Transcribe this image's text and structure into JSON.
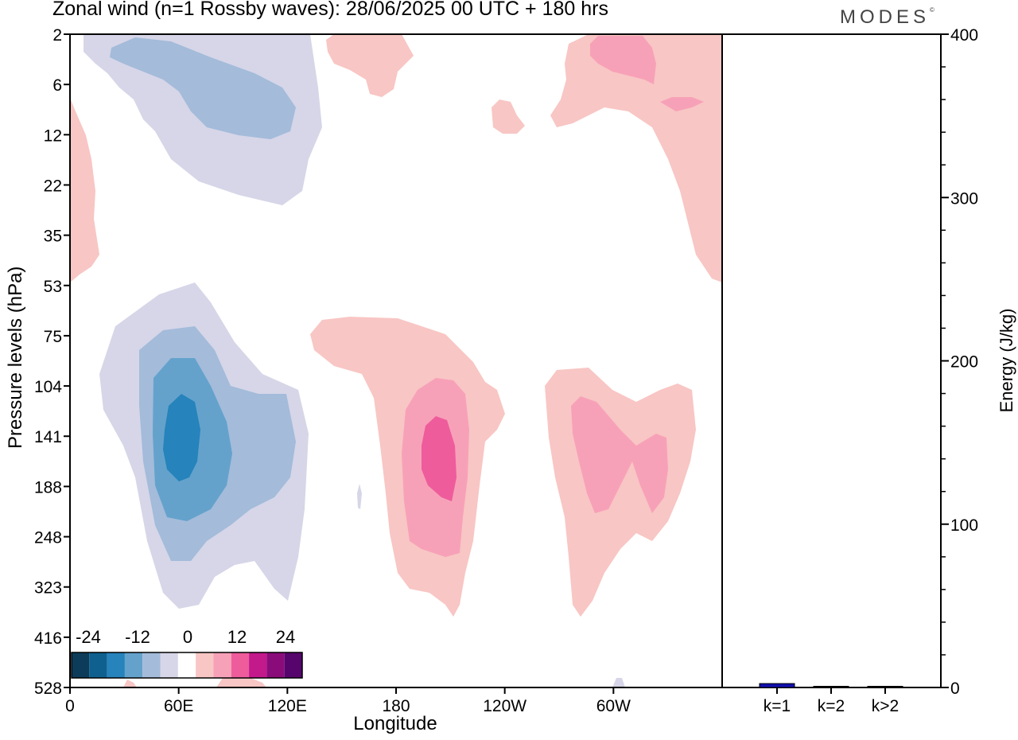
{
  "header": {
    "title": "Zonal wind (n=1 Rossby waves):  28/06/2025  00 UTC  + 180 hrs",
    "brand": "MODES"
  },
  "chart_data": [
    {
      "type": "heatmap",
      "title": "Zonal wind (n=1 Rossby waves):  28/06/2025  00 UTC  + 180 hrs",
      "xlabel": "Longitude",
      "ylabel": "Pressure levels (hPa)",
      "x_ticks": [
        "0",
        "60E",
        "120E",
        "180",
        "120W",
        "60W"
      ],
      "x_tick_degrees": [
        0,
        60,
        120,
        180,
        240,
        300
      ],
      "xlim": [
        0,
        360
      ],
      "y_ticks": [
        "2",
        "6",
        "12",
        "22",
        "35",
        "53",
        "75",
        "104",
        "141",
        "188",
        "248",
        "323",
        "416",
        "528"
      ],
      "y_scale": "model levels (top 2 hPa, bottom 528 hPa)",
      "colorbar": {
        "tick_labels": [
          "-24",
          "-12",
          "0",
          "12",
          "24"
        ],
        "colors": [
          "#0d3c5a",
          "#0f608f",
          "#2683bb",
          "#64a2cc",
          "#a4bbda",
          "#d6d6e8",
          "#ffffff",
          "#f8c6c4",
          "#f7a1b8",
          "#ee5c9c",
          "#c2198b",
          "#8a0c7a",
          "#56056d"
        ]
      },
      "contours": [
        {
          "sign": "negative",
          "level": 1,
          "color": "#d6d6e8",
          "lon_range": [
            5,
            125
          ],
          "levels_hPa": [
            "2",
            "22"
          ]
        },
        {
          "sign": "negative",
          "level": 2,
          "color": "#a4bbda",
          "lon_range": [
            20,
            117
          ],
          "levels_hPa": [
            "2",
            "12"
          ]
        },
        {
          "sign": "negative",
          "level": 1,
          "color": "#d6d6e8",
          "lon_range": [
            15,
            130
          ],
          "levels_hPa": [
            "53",
            "323"
          ]
        },
        {
          "sign": "negative",
          "level": 2,
          "color": "#a4bbda",
          "lon_range": [
            38,
            125
          ],
          "levels_hPa": [
            "75",
            "323"
          ]
        },
        {
          "sign": "negative",
          "level": 3,
          "color": "#64a2cc",
          "lon_range": [
            46,
            88
          ],
          "levels_hPa": [
            "104",
            "248"
          ]
        },
        {
          "sign": "negative",
          "level": 4,
          "color": "#2683bb",
          "lon_range": [
            52,
            72
          ],
          "levels_hPa": [
            "104",
            "188"
          ]
        },
        {
          "sign": "positive",
          "level": 1,
          "color": "#f8c6c4",
          "lon_range": [
            132,
            190
          ],
          "levels_hPa": [
            "2",
            "6"
          ]
        },
        {
          "sign": "positive",
          "level": 1,
          "color": "#f8c6c4",
          "lon_range": [
            0,
            15
          ],
          "levels_hPa": [
            "6",
            "53"
          ]
        },
        {
          "sign": "positive",
          "level": 1,
          "color": "#f8c6c4",
          "lon_range": [
            265,
            360
          ],
          "levels_hPa": [
            "2",
            "53"
          ]
        },
        {
          "sign": "positive",
          "level": 2,
          "color": "#f7a1b8",
          "lon_range": [
            288,
            345
          ],
          "levels_hPa": [
            "2",
            "12"
          ]
        },
        {
          "sign": "positive",
          "level": 1,
          "color": "#f8c6c4",
          "lon_range": [
            133,
            240
          ],
          "levels_hPa": [
            "75",
            "416"
          ]
        },
        {
          "sign": "positive",
          "level": 2,
          "color": "#f7a1b8",
          "lon_range": [
            182,
            220
          ],
          "levels_hPa": [
            "104",
            "248"
          ]
        },
        {
          "sign": "positive",
          "level": 3,
          "color": "#ee5c9c",
          "lon_range": [
            195,
            215
          ],
          "levels_hPa": [
            "104",
            "188"
          ]
        },
        {
          "sign": "positive",
          "level": 1,
          "color": "#f8c6c4",
          "lon_range": [
            263,
            345
          ],
          "levels_hPa": [
            "104",
            "416"
          ]
        },
        {
          "sign": "positive",
          "level": 2,
          "color": "#f7a1b8",
          "lon_range": [
            278,
            330
          ],
          "levels_hPa": [
            "104",
            "248"
          ]
        }
      ]
    },
    {
      "type": "bar",
      "ylabel": "Energy (J/kg)",
      "categories": [
        "k=1",
        "k=2",
        "k>2"
      ],
      "values": [
        2.4,
        0.6,
        0.5
      ],
      "ylim": [
        0,
        400
      ],
      "y_ticks": [
        "0",
        "100",
        "200",
        "300",
        "400"
      ],
      "bar_colors": [
        "#1010b0",
        "#000000",
        "#000000"
      ]
    }
  ]
}
